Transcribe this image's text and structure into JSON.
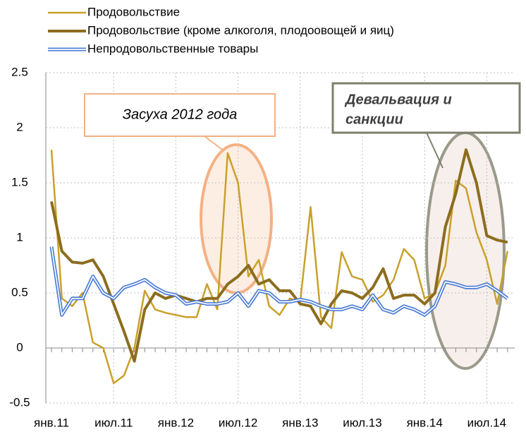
{
  "chart_data": {
    "type": "line",
    "categories": [
      "янв.11",
      null,
      null,
      null,
      null,
      null,
      "июл.11",
      null,
      null,
      null,
      null,
      null,
      "янв.12",
      null,
      null,
      null,
      null,
      null,
      "июл.12",
      null,
      null,
      null,
      null,
      null,
      "янв.13",
      null,
      null,
      null,
      null,
      null,
      "июл.13",
      null,
      null,
      null,
      null,
      null,
      "янв.14",
      null,
      null,
      null,
      null,
      null,
      "июл.14",
      null,
      null
    ],
    "series": [
      {
        "name": "Продовольствие",
        "color": "#c9a02a",
        "width": 2.5,
        "values": [
          1.8,
          0.45,
          0.38,
          0.5,
          0.05,
          0.0,
          -0.32,
          -0.25,
          0.0,
          0.52,
          0.35,
          0.32,
          0.3,
          0.28,
          0.28,
          0.58,
          0.35,
          1.77,
          1.5,
          0.65,
          0.8,
          0.38,
          0.3,
          0.45,
          0.42,
          1.28,
          0.28,
          0.18,
          0.87,
          0.65,
          0.62,
          0.42,
          0.48,
          0.62,
          0.9,
          0.8,
          0.45,
          0.5,
          0.75,
          1.52,
          1.45,
          1.05,
          0.8,
          0.4,
          0.88
        ]
      },
      {
        "name": "Продовольствие (кроме алкоголя, плодоовощей и яиц)",
        "color": "#8c6d1f",
        "width": 4,
        "values": [
          1.33,
          0.88,
          0.78,
          0.77,
          0.8,
          0.65,
          0.4,
          0.15,
          -0.12,
          0.35,
          0.5,
          0.45,
          0.48,
          0.45,
          0.42,
          0.45,
          0.45,
          0.58,
          0.65,
          0.75,
          0.58,
          0.62,
          0.52,
          0.52,
          0.4,
          0.38,
          0.22,
          0.4,
          0.52,
          0.5,
          0.45,
          0.55,
          0.72,
          0.45,
          0.48,
          0.48,
          0.4,
          0.5,
          1.1,
          1.4,
          1.8,
          1.5,
          1.02,
          0.98,
          0.96
        ]
      },
      {
        "name": "Непродовольственные товары",
        "color": "#4a7bd6",
        "width": 5,
        "double": true,
        "values": [
          0.92,
          0.3,
          0.45,
          0.45,
          0.65,
          0.5,
          0.45,
          0.55,
          0.58,
          0.62,
          0.55,
          0.5,
          0.48,
          0.4,
          0.42,
          0.4,
          0.4,
          0.42,
          0.5,
          0.38,
          0.52,
          0.5,
          0.42,
          0.42,
          0.44,
          0.42,
          0.38,
          0.35,
          0.35,
          0.38,
          0.35,
          0.48,
          0.35,
          0.32,
          0.38,
          0.35,
          0.3,
          0.38,
          0.6,
          0.58,
          0.55,
          0.55,
          0.58,
          0.52,
          0.45
        ]
      }
    ],
    "ylim": [
      -0.5,
      2.5
    ],
    "yticks": [
      {
        "value": -0.5,
        "label": "-0.5"
      },
      0,
      0.5,
      1,
      1.5,
      2,
      2.5
    ],
    "grid": true,
    "legend": "top-left",
    "annotations": [
      {
        "text": "Засуха 2012 года"
      },
      {
        "lines": [
          "Девальвация и",
          "санкции"
        ]
      }
    ]
  }
}
